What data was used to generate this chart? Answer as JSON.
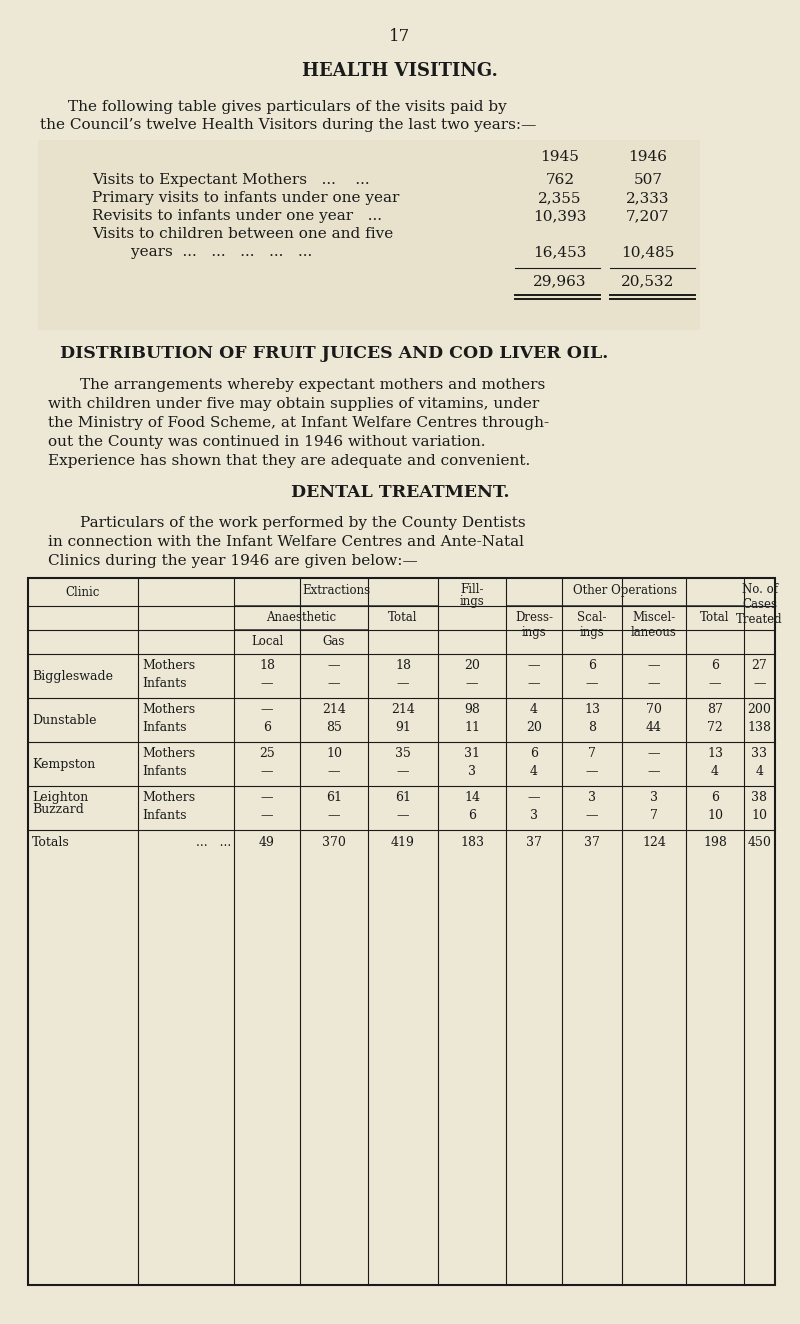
{
  "bg_color": "#ede8d5",
  "page_number": "17",
  "section1_title": "HEALTH VISITING.",
  "section1_intro_line1": "The following table gives particulars of the visits paid by",
  "section1_intro_line2": "the Council’s twelve Health Visitors during the last two years:—",
  "visits_rows": [
    {
      "label": "Visits to Expectant Mothers   ...    ...",
      "v1945": "762",
      "v1946": "507"
    },
    {
      "label": "Primary visits to infants under one year",
      "v1945": "2,355",
      "v1946": "2,333"
    },
    {
      "label": "Revisits to infants under one year   ...",
      "v1945": "10,393",
      "v1946": "7,207"
    },
    {
      "label": "Visits to children between one and five",
      "v1945": "",
      "v1946": ""
    },
    {
      "label": "        years  ...   ...   ...   ...   ...",
      "v1945": "16,453",
      "v1946": "10,485"
    }
  ],
  "visits_totals": [
    "29,963",
    "20,532"
  ],
  "section2_title": "DISTRIBUTION OF FRUIT JUICES AND COD LIVER OIL.",
  "section2_lines": [
    "The arrangements whereby expectant mothers and mothers",
    "with children under five may obtain supplies of vitamins, under",
    "the Ministry of Food Scheme, at Infant Welfare Centres through-",
    "out the County was continued in 1946 without variation.",
    "Experience has shown that they are adequate and convenient."
  ],
  "section3_title": "DENTAL TREATMENT.",
  "section3_intro_lines": [
    "Particulars of the work performed by the County Dentists",
    "in connection with the Infant Welfare Centres and Ante-Natal",
    "Clinics during the year 1946 are given below:—"
  ],
  "dental_groups": [
    {
      "clinic": "Biggleswade",
      "rows": [
        {
          "type": "Mothers",
          "local": "18",
          "gas": "—",
          "ext_total": "18",
          "fill": "20",
          "dress": "—",
          "scal": "6",
          "misc": "—",
          "ops_total": "6",
          "cases": "27"
        },
        {
          "type": "Infants",
          "local": "—",
          "gas": "—",
          "ext_total": "—",
          "fill": "—",
          "dress": "—",
          "scal": "—",
          "misc": "—",
          "ops_total": "—",
          "cases": "—"
        }
      ]
    },
    {
      "clinic": "Dunstable",
      "rows": [
        {
          "type": "Mothers",
          "local": "—",
          "gas": "214",
          "ext_total": "214",
          "fill": "98",
          "dress": "4",
          "scal": "13",
          "misc": "70",
          "ops_total": "87",
          "cases": "200"
        },
        {
          "type": "Infants",
          "local": "6",
          "gas": "85",
          "ext_total": "91",
          "fill": "11",
          "dress": "20",
          "scal": "8",
          "misc": "44",
          "ops_total": "72",
          "cases": "138"
        }
      ]
    },
    {
      "clinic": "Kempston",
      "rows": [
        {
          "type": "Mothers",
          "local": "25",
          "gas": "10",
          "ext_total": "35",
          "fill": "31",
          "dress": "6",
          "scal": "7",
          "misc": "—",
          "ops_total": "13",
          "cases": "33"
        },
        {
          "type": "Infants",
          "local": "—",
          "gas": "—",
          "ext_total": "—",
          "fill": "3",
          "dress": "4",
          "scal": "—",
          "misc": "—",
          "ops_total": "4",
          "cases": "4"
        }
      ]
    },
    {
      "clinic": "Leighton\nBuzzard",
      "rows": [
        {
          "type": "Mothers",
          "local": "—",
          "gas": "61",
          "ext_total": "61",
          "fill": "14",
          "dress": "—",
          "scal": "3",
          "misc": "3",
          "ops_total": "6",
          "cases": "38"
        },
        {
          "type": "Infants",
          "local": "—",
          "gas": "—",
          "ext_total": "—",
          "fill": "6",
          "dress": "3",
          "scal": "—",
          "misc": "7",
          "ops_total": "10",
          "cases": "10"
        }
      ]
    }
  ],
  "dental_totals": {
    "local": "49",
    "gas": "370",
    "ext_total": "419",
    "fill": "183",
    "dress": "37",
    "scal": "37",
    "misc": "124",
    "ops_total": "198",
    "cases": "450"
  }
}
